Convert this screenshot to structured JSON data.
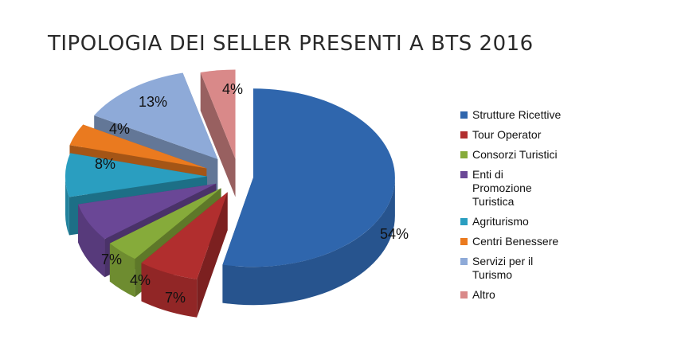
{
  "chart_data": {
    "type": "pie",
    "title": "TIPOLOGIA DEI SELLER PRESENTI A BTS 2016",
    "categories": [
      "Strutture Ricettive",
      "Tour Operator",
      "Consorzi Turistici",
      "Enti di Promozione Turistica",
      "Agriturismo",
      "Centri Benessere",
      "Servizi per il Turismo",
      "Altro"
    ],
    "legend_lines": [
      [
        "Strutture Ricettive"
      ],
      [
        "Tour Operator"
      ],
      [
        "Consorzi Turistici"
      ],
      [
        "Enti di",
        "Promozione",
        "Turistica"
      ],
      [
        "Agriturismo"
      ],
      [
        "Centri Benessere"
      ],
      [
        "Servizi per il",
        "Turismo"
      ],
      [
        "Altro"
      ]
    ],
    "values": [
      54,
      7,
      4,
      7,
      8,
      4,
      13,
      4
    ],
    "data_labels": [
      "54%",
      "7%",
      "4%",
      "7%",
      "8%",
      "4%",
      "13%",
      "4%"
    ],
    "colors": [
      "#2f66ad",
      "#b12e2e",
      "#86ab3a",
      "#6a4796",
      "#2a9ec0",
      "#ea7a1f",
      "#8eaad8",
      "#d98989"
    ],
    "legend_position": "right",
    "style": "3d-exploded"
  }
}
